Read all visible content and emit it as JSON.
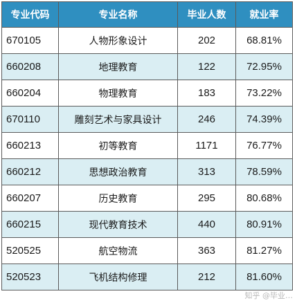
{
  "table": {
    "headers": [
      "专业代码",
      "专业名称",
      "毕业人数",
      "就业率"
    ],
    "rows": [
      {
        "code": "670105",
        "name": "人物形象设计",
        "graduates": "202",
        "rate": "68.81%"
      },
      {
        "code": "660208",
        "name": "地理教育",
        "graduates": "122",
        "rate": "72.95%"
      },
      {
        "code": "660204",
        "name": "物理教育",
        "graduates": "183",
        "rate": "73.22%"
      },
      {
        "code": "670110",
        "name": "雕刻艺术与家具设计",
        "graduates": "246",
        "rate": "74.39%"
      },
      {
        "code": "660213",
        "name": "初等教育",
        "graduates": "1171",
        "rate": "76.77%"
      },
      {
        "code": "660212",
        "name": "思想政治教育",
        "graduates": "313",
        "rate": "78.59%"
      },
      {
        "code": "660207",
        "name": "历史教育",
        "graduates": "295",
        "rate": "80.68%"
      },
      {
        "code": "660215",
        "name": "现代教育技术",
        "graduates": "440",
        "rate": "80.91%"
      },
      {
        "code": "520525",
        "name": "航空物流",
        "graduates": "363",
        "rate": "81.27%"
      },
      {
        "code": "520523",
        "name": "飞机结构修理",
        "graduates": "212",
        "rate": "81.60%"
      }
    ]
  },
  "colors": {
    "header_bg": "#2f8fc0",
    "header_text": "#ffffff",
    "alt_row_bg": "#daeef3",
    "border": "#5a5a5a"
  },
  "watermark": "知乎 @毕业…"
}
